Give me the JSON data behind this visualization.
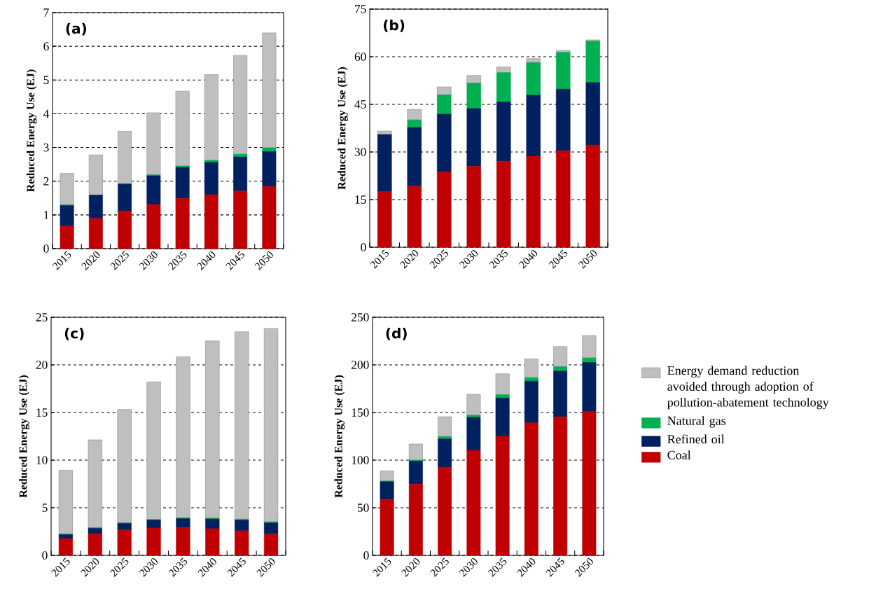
{
  "chart_data": [
    {
      "type": "bar",
      "stacked": true,
      "title": "(a)",
      "ylabel": "Reduced Energy Use (EJ)",
      "categories": [
        "2015",
        "2020",
        "2025",
        "2030",
        "2035",
        "2040",
        "2045",
        "2050"
      ],
      "ylim": [
        0,
        7
      ],
      "yticks": [
        0,
        1,
        2,
        3,
        4,
        5,
        6,
        7
      ],
      "grid": "y",
      "legend": false,
      "series": [
        {
          "color": "#c00000",
          "values": [
            0.67,
            0.9,
            1.12,
            1.31,
            1.49,
            1.6,
            1.71,
            1.85
          ]
        },
        {
          "color": "#002060",
          "values": [
            0.61,
            0.69,
            0.79,
            0.85,
            0.92,
            0.96,
            1.01,
            1.03
          ]
        },
        {
          "color": "#00b050",
          "values": [
            0.02,
            0.0,
            0.02,
            0.03,
            0.04,
            0.06,
            0.08,
            0.11
          ]
        },
        {
          "color": "#bfbfbf",
          "values": [
            0.93,
            1.19,
            1.55,
            1.84,
            2.22,
            2.54,
            2.93,
            3.41
          ]
        }
      ]
    },
    {
      "type": "bar",
      "stacked": true,
      "title": "(b)",
      "ylabel": "Reduced Energy Use (EJ)",
      "categories": [
        "2015",
        "2020",
        "2025",
        "2030",
        "2035",
        "2040",
        "2045",
        "2050"
      ],
      "ylim": [
        0,
        75
      ],
      "yticks": [
        0,
        15,
        30,
        45,
        60,
        75
      ],
      "grid": "y",
      "legend": false,
      "series": [
        {
          "color": "#c00000",
          "values": [
            17.5,
            19.3,
            23.8,
            25.5,
            27.1,
            28.7,
            30.4,
            32.2
          ]
        },
        {
          "color": "#002060",
          "values": [
            18.0,
            18.4,
            18.1,
            18.2,
            18.7,
            19.2,
            19.4,
            19.7
          ]
        },
        {
          "color": "#00b050",
          "values": [
            null,
            2.4,
            6.1,
            8.0,
            9.2,
            10.3,
            11.6,
            13.0
          ]
        },
        {
          "color": "#bfbfbf",
          "values": [
            1.1,
            3.3,
            2.5,
            2.4,
            1.8,
            1.2,
            0.6,
            0.4
          ]
        }
      ]
    },
    {
      "type": "bar",
      "stacked": true,
      "title": "(c)",
      "ylabel": "Reduced Energy Use (EJ)",
      "categories": [
        "2015",
        "2020",
        "2025",
        "2030",
        "2035",
        "2040",
        "2045",
        "2050"
      ],
      "ylim": [
        0,
        25
      ],
      "yticks": [
        0,
        5,
        10,
        15,
        20,
        25
      ],
      "grid": "y",
      "legend": false,
      "series": [
        {
          "color": "#c00000",
          "values": [
            1.77,
            2.28,
            2.68,
            2.87,
            2.92,
            2.8,
            2.58,
            2.26
          ]
        },
        {
          "color": "#002060",
          "values": [
            0.42,
            0.57,
            0.68,
            0.84,
            0.94,
            1.01,
            1.13,
            1.15
          ]
        },
        {
          "color": "#00b050",
          "values": [
            0.06,
            0.05,
            0.06,
            0.07,
            0.09,
            0.11,
            0.09,
            0.11
          ]
        },
        {
          "color": "#bfbfbf",
          "values": [
            6.69,
            9.23,
            11.9,
            14.44,
            16.9,
            18.6,
            19.68,
            20.3
          ]
        }
      ]
    },
    {
      "type": "bar",
      "stacked": true,
      "title": "(d)",
      "ylabel": "Reduced Energy Use (EJ)",
      "categories": [
        "2015",
        "2020",
        "2025",
        "2030",
        "2035",
        "2040",
        "2045",
        "2050"
      ],
      "ylim": [
        0,
        250
      ],
      "yticks": [
        0,
        50,
        100,
        150,
        200,
        250
      ],
      "grid": "y",
      "legend": "right",
      "series": [
        {
          "name": "Coal",
          "color": "#c00000",
          "values": [
            58.7,
            74.9,
            92.6,
            110.3,
            125.0,
            139.2,
            145.6,
            151.0
          ]
        },
        {
          "name": "Refined oil",
          "color": "#002060",
          "values": [
            18.7,
            24.1,
            29.7,
            34.6,
            40.3,
            43.8,
            47.9,
            51.6
          ]
        },
        {
          "name": "Natural gas",
          "color": "#00b050",
          "values": [
            0.7,
            1.0,
            2.5,
            2.4,
            3.4,
            3.7,
            4.7,
            4.7
          ]
        },
        {
          "name": "Energy demand reduction avoided through adoption of pollution-abatement technology",
          "color": "#bfbfbf",
          "values": [
            10.6,
            16.9,
            20.8,
            21.9,
            21.9,
            19.6,
            21.1,
            23.5
          ]
        }
      ]
    }
  ]
}
